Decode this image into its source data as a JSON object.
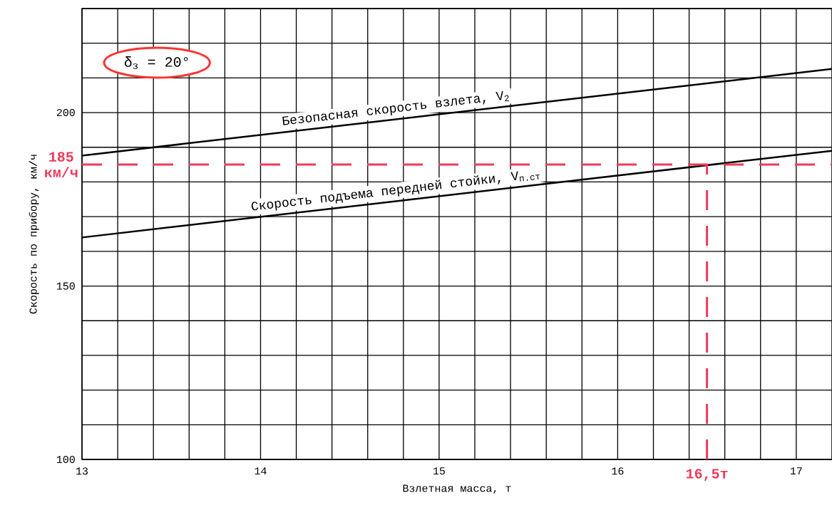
{
  "chart_data": {
    "type": "line",
    "xlabel": "Взлетная масса, т",
    "ylabel": "Скорость по прибору, км/ч",
    "annotations": [
      "δ$_{з}$ = 20°"
    ],
    "x": [
      13,
      17.2
    ],
    "series": [
      {
        "name": "Безопасная скорость взлета, V$_{2}$",
        "color": "#000000",
        "values": [
          187.6,
          212.6
        ]
      },
      {
        "name": "Скорость подъема передней стойки, V$_{п.ст}$",
        "color": "#000000",
        "values": [
          164,
          189
        ]
      }
    ],
    "xlim": [
      13,
      17.2
    ],
    "ylim": [
      100,
      230
    ],
    "xticks": [
      13,
      {
        "value": 13.2,
        "label": null
      },
      {
        "value": 13.4,
        "label": null
      },
      {
        "value": 13.6,
        "label": null
      },
      {
        "value": 13.8,
        "label": null
      },
      14,
      {
        "value": 14.2,
        "label": null
      },
      {
        "value": 14.4,
        "label": null
      },
      {
        "value": 14.6,
        "label": null
      },
      {
        "value": 14.8,
        "label": null
      },
      15,
      {
        "value": 15.2,
        "label": null
      },
      {
        "value": 15.4,
        "label": null
      },
      {
        "value": 15.6,
        "label": null
      },
      {
        "value": 15.8,
        "label": null
      },
      16,
      {
        "value": 16.2,
        "label": null
      },
      {
        "value": 16.4,
        "label": null
      },
      {
        "value": 16.6,
        "label": null
      },
      {
        "value": 16.8,
        "label": null
      },
      17
    ],
    "yticks": [
      100,
      {
        "value": 110,
        "label": null
      },
      {
        "value": 120,
        "label": null
      },
      {
        "value": 130,
        "label": null
      },
      {
        "value": 140,
        "label": null
      },
      150,
      {
        "value": 160,
        "label": null
      },
      {
        "value": 170,
        "label": null
      },
      {
        "value": 180,
        "label": null
      },
      {
        "value": 190,
        "label": null
      },
      200,
      {
        "value": 210,
        "label": null
      },
      {
        "value": 220,
        "label": null
      },
      {
        "value": 230,
        "label": null
      }
    ],
    "grid": true,
    "marker": "none",
    "line_style": "solid",
    "ref_lines": [
      {
        "axis": "y",
        "value": 185,
        "label": "185 км/ч",
        "color": "#ee3a5a",
        "line_style": "dashed"
      },
      {
        "axis": "x",
        "value": 16.5,
        "label": "16,5т",
        "color": "#ee3a5a",
        "line_style": "dashed"
      }
    ]
  }
}
